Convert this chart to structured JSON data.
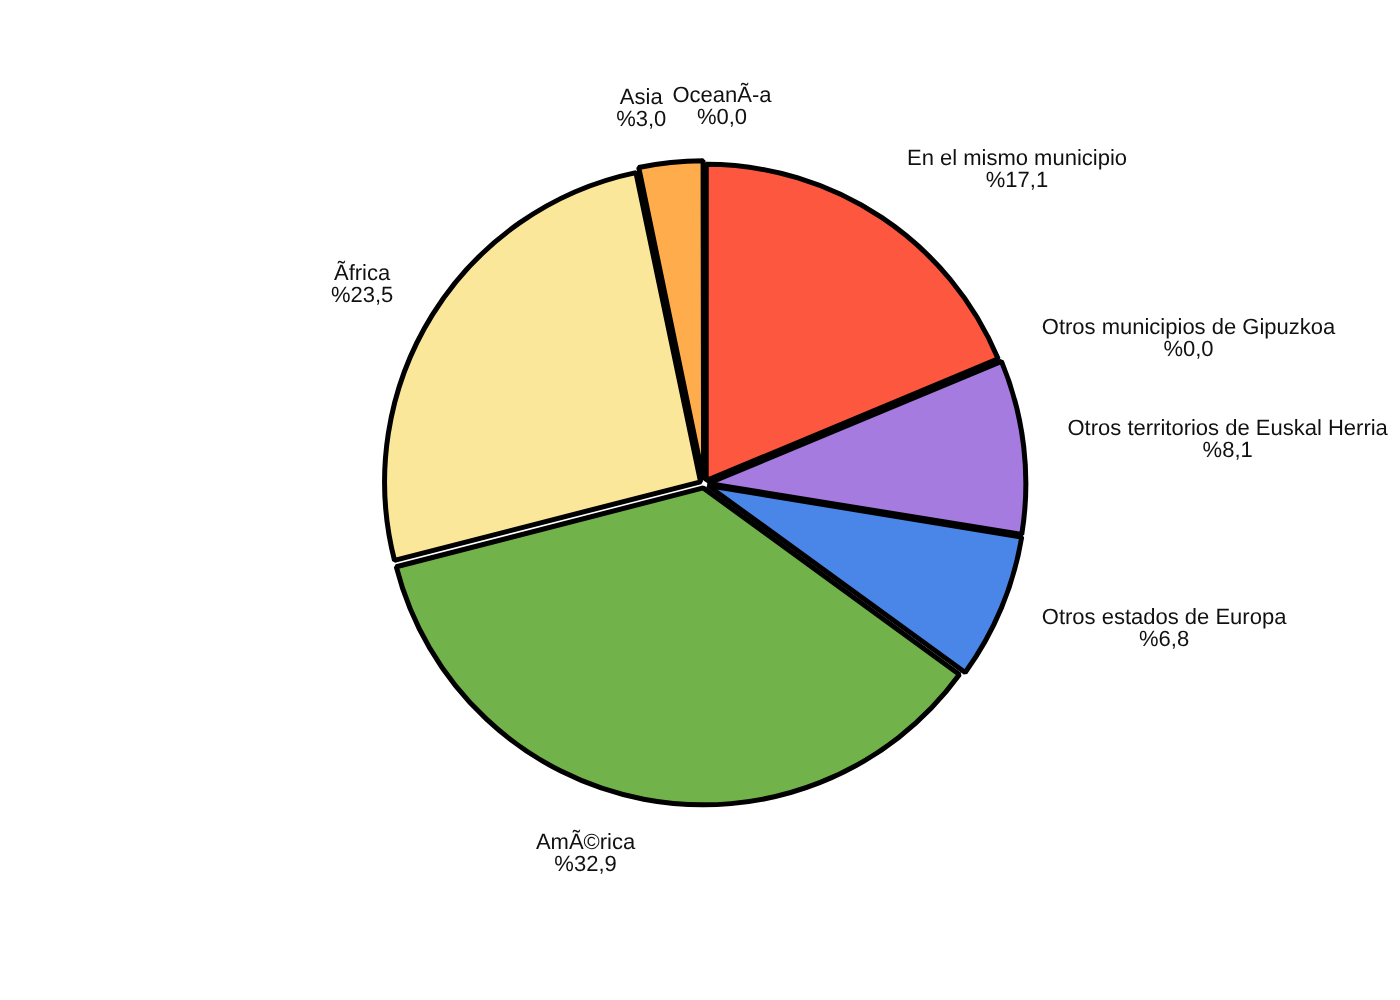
{
  "chart_data": {
    "type": "pie",
    "categories": [
      "En el mismo municipio",
      "Otros municipios de Gipuzkoa",
      "Otros territorios de Euskal Herria",
      "Otros estados de Europa",
      "AmÃ©rica",
      "Ãfrica",
      "Asia",
      "OceanÃ-a"
    ],
    "values": [
      17.1,
      0.0,
      8.1,
      6.8,
      32.9,
      23.5,
      3.0,
      0.0
    ],
    "value_labels": [
      "%17,1",
      "%0,0",
      "%8,1",
      "%6,8",
      "%32,9",
      "%23,5",
      "%3,0",
      "%0,0"
    ],
    "colors": [
      "#fd583f",
      "#999999",
      "#a67be0",
      "#4a86e8",
      "#72b24a",
      "#fbe79a",
      "#ffad4c",
      "#b4a7d6"
    ]
  }
}
